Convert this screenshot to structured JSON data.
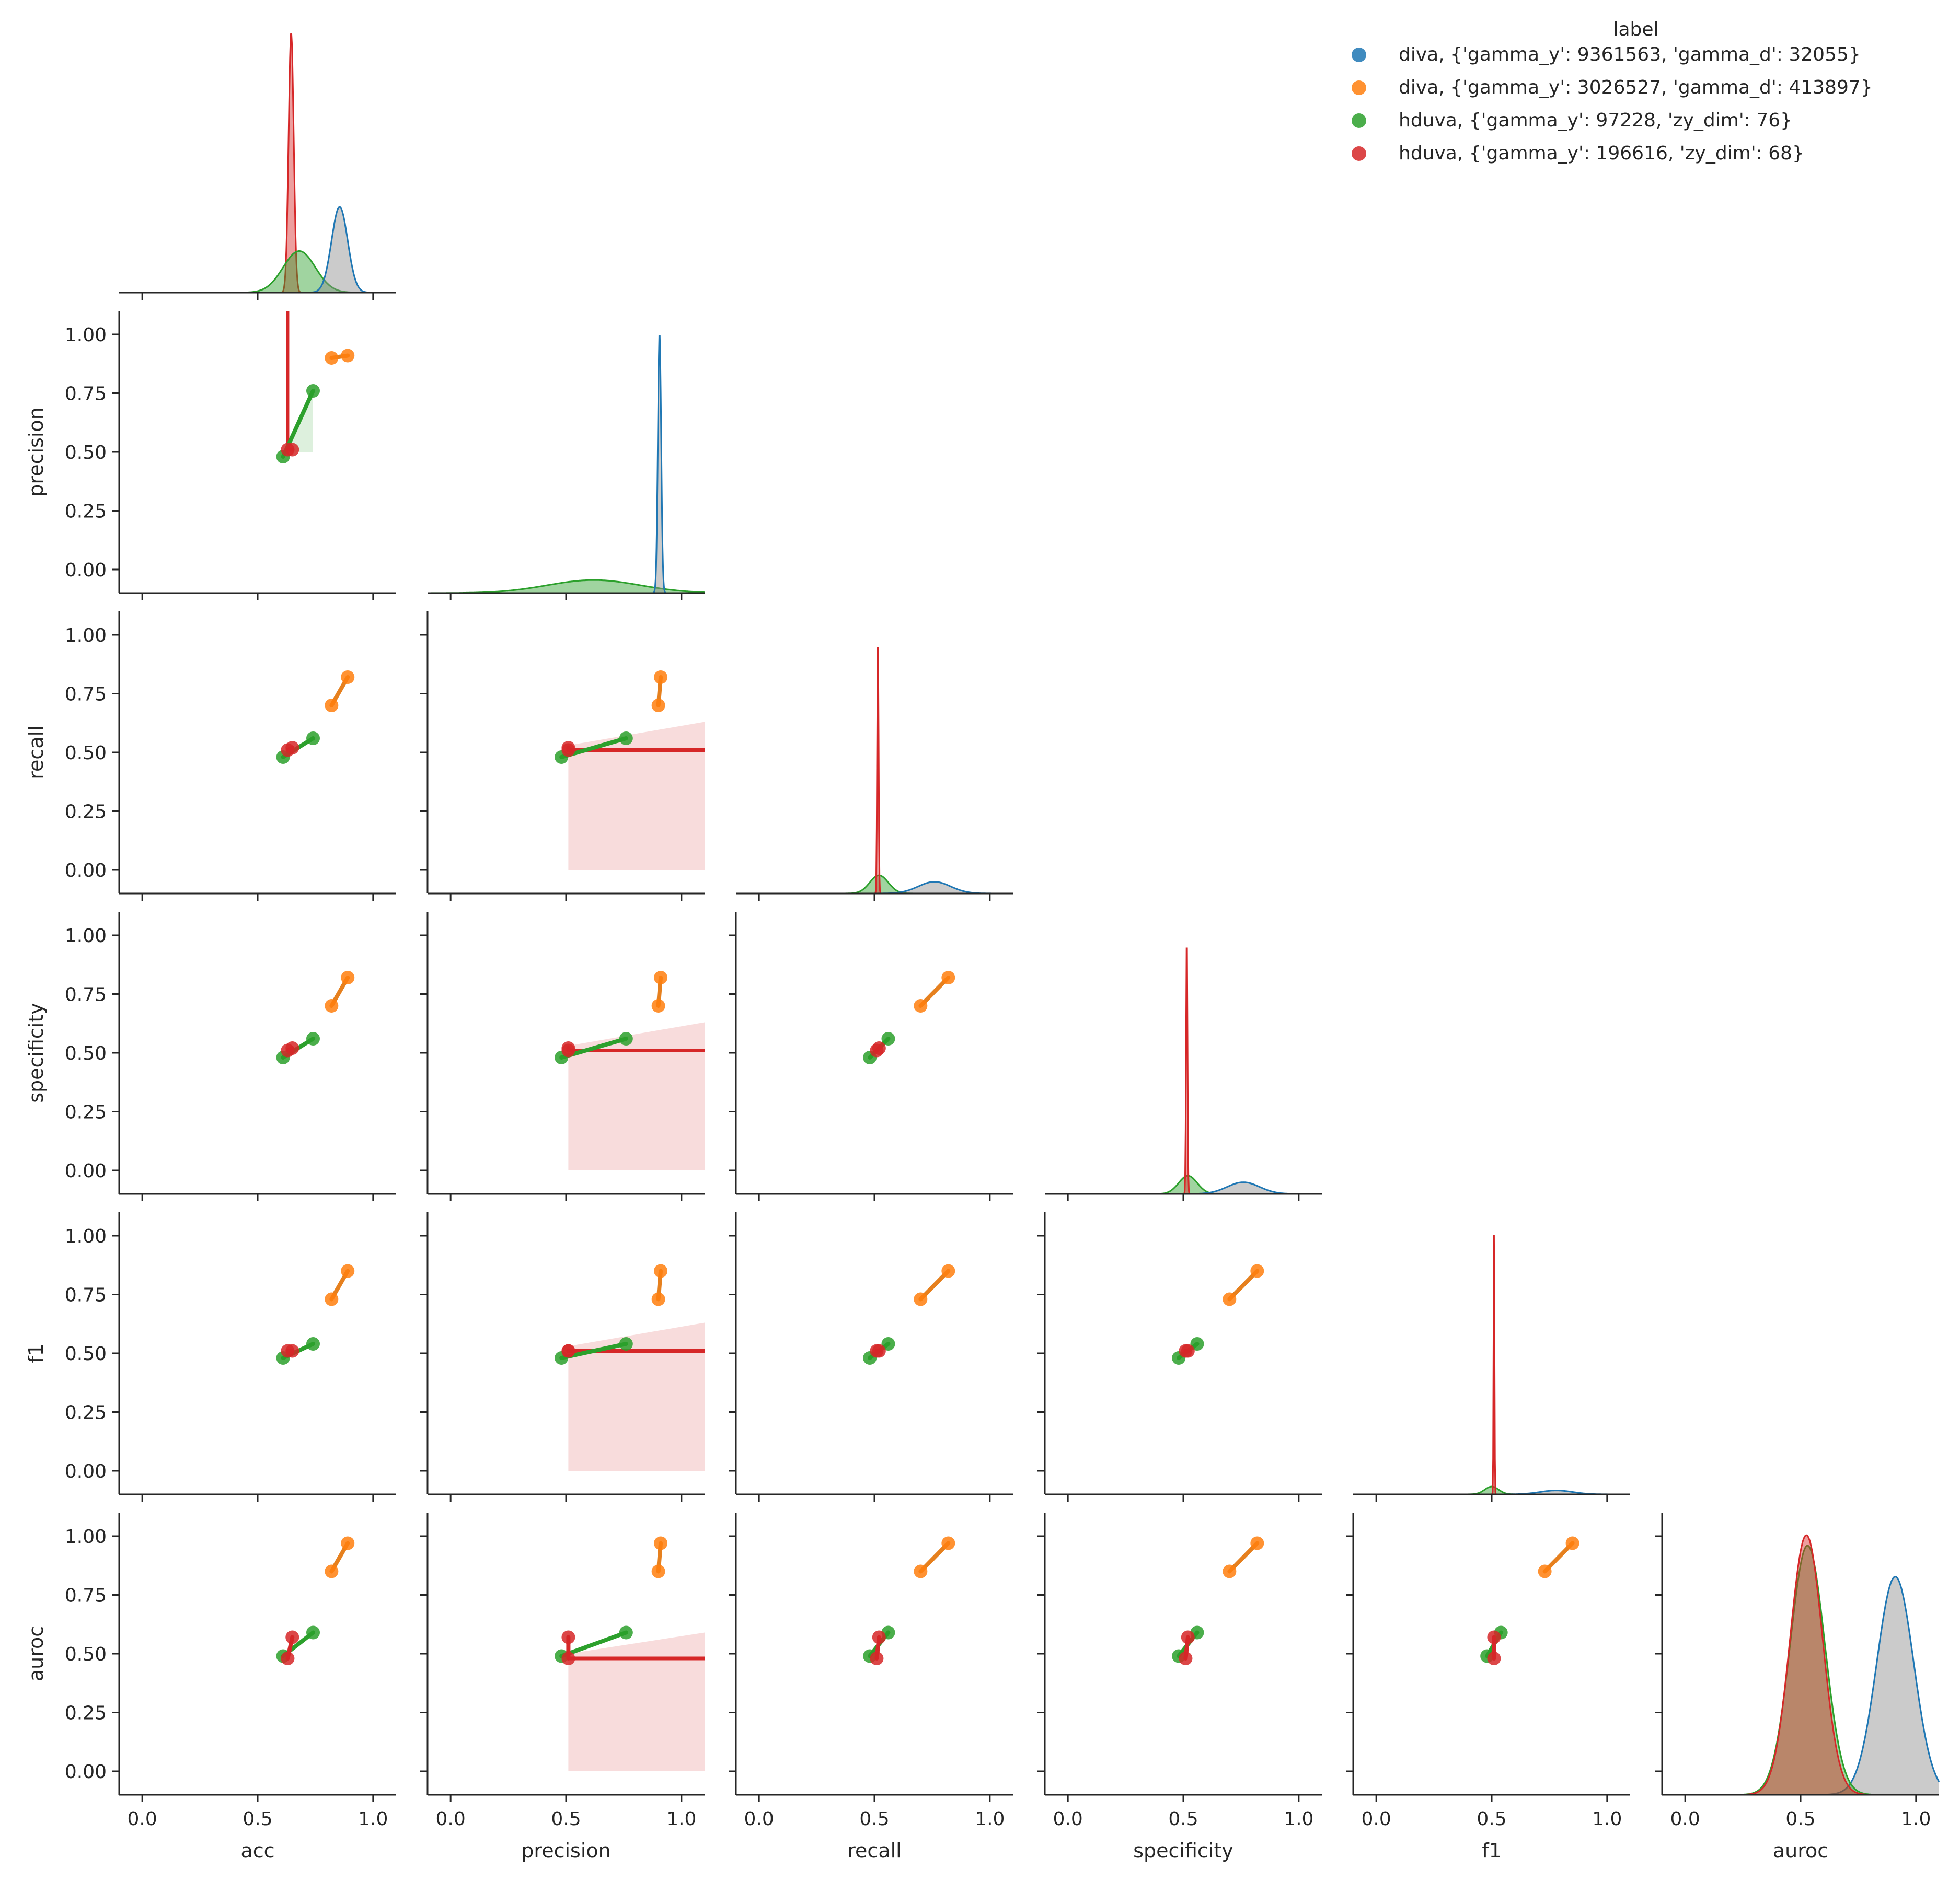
{
  "chart_data": {
    "type": "scatter",
    "subtype": "pairplot-corner",
    "variables": [
      "acc",
      "precision",
      "recall",
      "specificity",
      "f1",
      "auroc"
    ],
    "axis_range": [
      -0.1,
      1.1
    ],
    "ticks": [
      0.0,
      0.25,
      0.5,
      0.75,
      1.0
    ],
    "tick_labels_y": [
      "0.00",
      "0.25",
      "0.50",
      "0.75",
      "1.00"
    ],
    "tick_labels_x": [
      "0.0",
      "0.5",
      "1.0"
    ],
    "grid": false,
    "legend": {
      "title": "label",
      "placement": "top-right",
      "entries": [
        {
          "text": "diva, {'gamma_y': 9361563, 'gamma_d': 32055}",
          "color": "#1f77b4"
        },
        {
          "text": "diva, {'gamma_y': 3026527, 'gamma_d': 413897}",
          "color": "#ff7f0e"
        },
        {
          "text": "hduva, {'gamma_y': 97228, 'zy_dim': 76}",
          "color": "#2ca02c"
        },
        {
          "text": "hduva, {'gamma_y': 196616, 'zy_dim': 68}",
          "color": "#d62728"
        }
      ]
    },
    "series": [
      {
        "name": "diva, {'gamma_y': 3026527, 'gamma_d': 413897}",
        "color": "#ff7f0e",
        "line_color": "#e6801e",
        "points": [
          {
            "acc": 0.82,
            "precision": 0.9,
            "recall": 0.7,
            "specificity": 0.7,
            "f1": 0.73,
            "auroc": 0.85
          },
          {
            "acc": 0.89,
            "precision": 0.91,
            "recall": 0.82,
            "specificity": 0.82,
            "f1": 0.85,
            "auroc": 0.97
          }
        ]
      },
      {
        "name": "hduva, {'gamma_y': 97228, 'zy_dim': 76}",
        "color": "#2ca02c",
        "line_color": "#2ca02c",
        "points": [
          {
            "acc": 0.61,
            "precision": 0.48,
            "recall": 0.48,
            "specificity": 0.48,
            "f1": 0.48,
            "auroc": 0.49
          },
          {
            "acc": 0.74,
            "precision": 0.76,
            "recall": 0.56,
            "specificity": 0.56,
            "f1": 0.54,
            "auroc": 0.59
          }
        ]
      },
      {
        "name": "hduva, {'gamma_y': 196616, 'zy_dim': 68}",
        "color": "#d62728",
        "line_color": "#d62728",
        "points": [
          {
            "acc": 0.63,
            "precision": 0.51,
            "recall": 0.51,
            "specificity": 0.51,
            "f1": 0.51,
            "auroc": 0.48
          },
          {
            "acc": 0.65,
            "precision": 0.51,
            "recall": 0.52,
            "specificity": 0.52,
            "f1": 0.51,
            "auroc": 0.57
          }
        ]
      }
    ],
    "diagonal_kde": {
      "acc": [
        {
          "color": "#d62728",
          "center": 0.645,
          "sd": 0.011,
          "peak": 1.0
        },
        {
          "color": "#2ca02c",
          "center": 0.68,
          "sd": 0.07,
          "peak": 0.16
        },
        {
          "color": "#1f77b4",
          "center": 0.855,
          "sd": 0.035,
          "peak": 0.33
        }
      ],
      "precision": [
        {
          "color": "#2ca02c",
          "center": 0.62,
          "sd": 0.2,
          "peak": 0.05
        },
        {
          "color": "#1f77b4",
          "center": 0.905,
          "sd": 0.007,
          "peak": 1.0
        }
      ],
      "recall": [
        {
          "color": "#2ca02c",
          "center": 0.52,
          "sd": 0.04,
          "peak": 0.07
        },
        {
          "color": "#1f77b4",
          "center": 0.76,
          "sd": 0.07,
          "peak": 0.045
        },
        {
          "color": "#d62728",
          "center": 0.515,
          "sd": 0.003,
          "peak": 1.0
        }
      ],
      "specificity": [
        {
          "color": "#2ca02c",
          "center": 0.52,
          "sd": 0.04,
          "peak": 0.07
        },
        {
          "color": "#1f77b4",
          "center": 0.76,
          "sd": 0.07,
          "peak": 0.045
        },
        {
          "color": "#d62728",
          "center": 0.515,
          "sd": 0.003,
          "peak": 1.0
        }
      ],
      "f1": [
        {
          "color": "#2ca02c",
          "center": 0.5,
          "sd": 0.03,
          "peak": 0.03
        },
        {
          "color": "#1f77b4",
          "center": 0.78,
          "sd": 0.07,
          "peak": 0.015
        },
        {
          "color": "#d62728",
          "center": 0.51,
          "sd": 0.002,
          "peak": 1.0
        }
      ],
      "auroc": [
        {
          "color": "#1f77b4",
          "center": 0.91,
          "sd": 0.08,
          "peak": 0.84
        },
        {
          "color": "#2ca02c",
          "center": 0.53,
          "sd": 0.075,
          "peak": 0.96
        },
        {
          "color": "#d62728",
          "center": 0.525,
          "sd": 0.07,
          "peak": 1.0
        }
      ]
    },
    "regression_bands": {
      "red_horizontal_band": {
        "x_from": 0.51,
        "x_to": 1.1,
        "y_low": 0.0,
        "y_high_end": 0.63
      }
    }
  }
}
